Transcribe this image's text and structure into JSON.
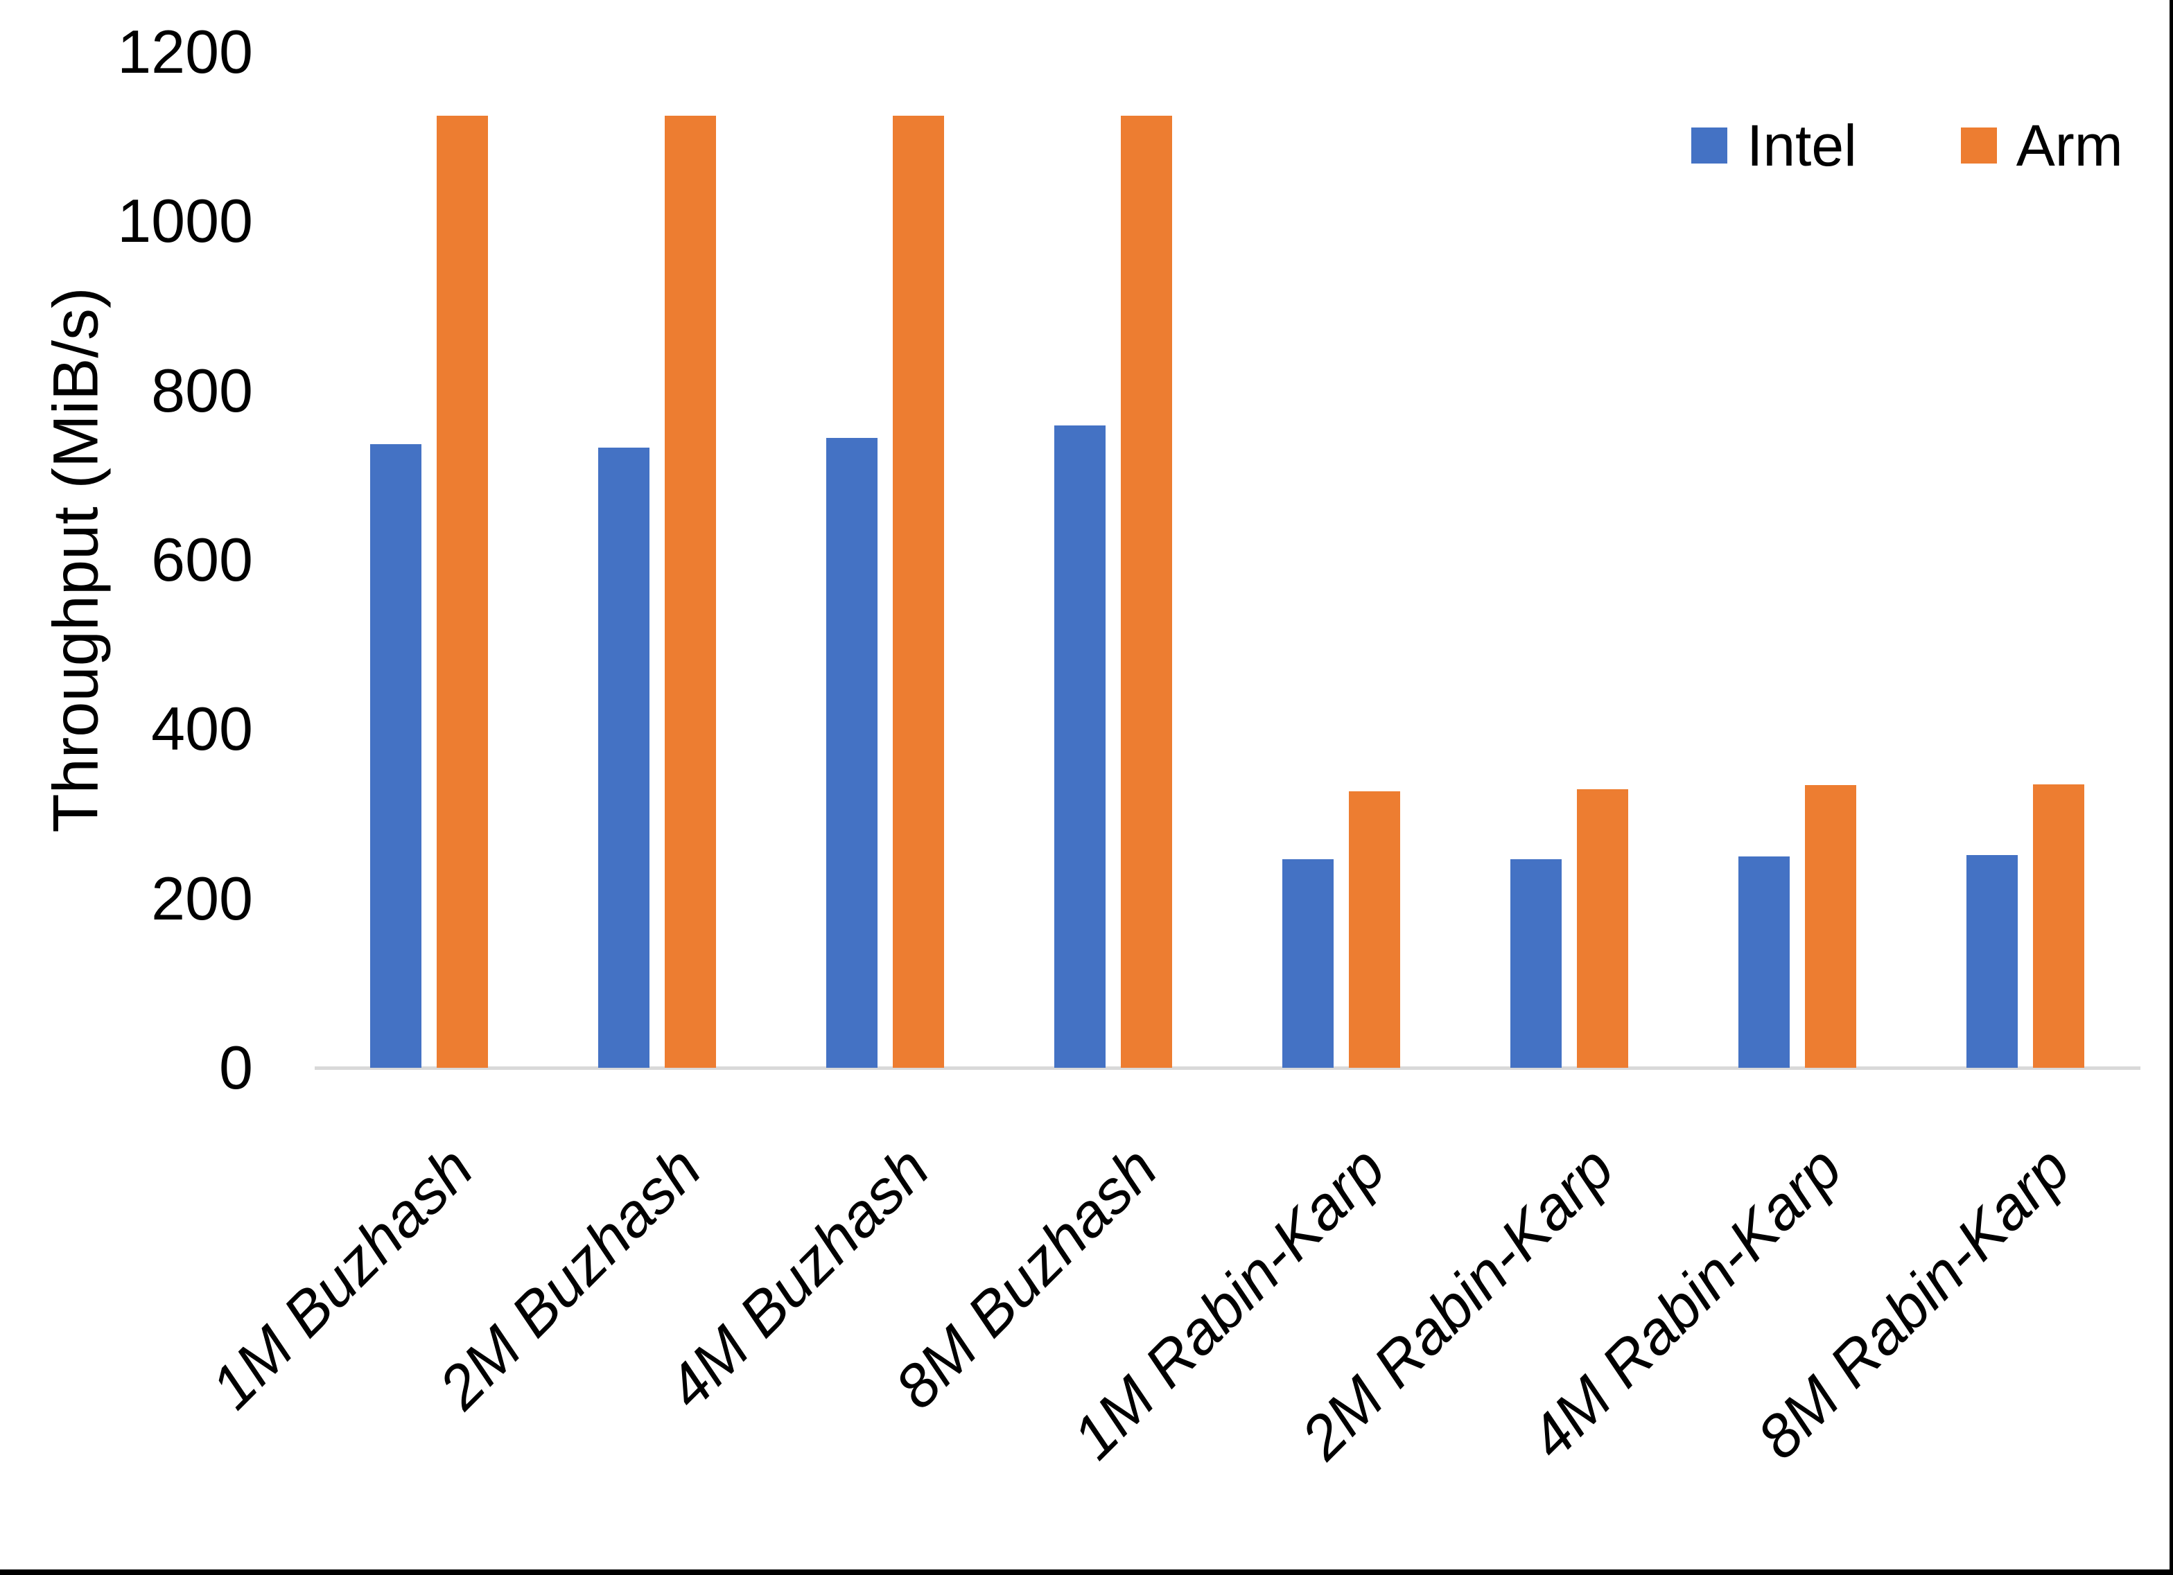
{
  "chart_data": {
    "type": "bar",
    "title": "",
    "ylabel": "Throughput (MiB/s)",
    "xlabel": "",
    "categories": [
      "1M Buzhash",
      "2M Buzhash",
      "4M Buzhash",
      "8M Buzhash",
      "1M Rabin-Karp",
      "2M Rabin-Karp",
      "4M Rabin-Karp",
      "8M Rabin-Karp"
    ],
    "series": [
      {
        "name": "Intel",
        "color": "#4472C4",
        "values": [
          737,
          733,
          744,
          759,
          246,
          246,
          250,
          251
        ]
      },
      {
        "name": "Arm",
        "color": "#ED7D31",
        "values": [
          1125,
          1125,
          1125,
          1125,
          327,
          329,
          334,
          335
        ]
      }
    ],
    "ylim": [
      0,
      1200
    ],
    "yticks": [
      0,
      200,
      400,
      600,
      800,
      1000,
      1200
    ],
    "grid": false,
    "legend_position": "top-right",
    "axis_line_color": "#D9D9D9",
    "text_color": "#000000",
    "frame_color": "#000000"
  }
}
